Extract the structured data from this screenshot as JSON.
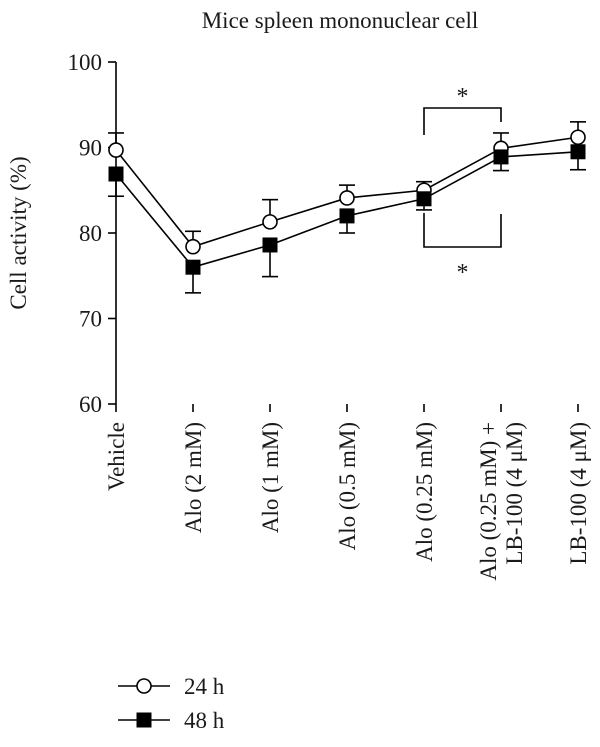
{
  "chart_data": {
    "type": "line",
    "title": "Mice spleen mononuclear cell",
    "xlabel": "",
    "ylabel": "Cell activity (%)",
    "ylim": [
      60,
      100
    ],
    "yticks": [
      "60",
      "70",
      "80",
      "90",
      "100"
    ],
    "categories": [
      [
        "Vehicle"
      ],
      [
        "Alo (2 mM)"
      ],
      [
        "Alo (1 mM)"
      ],
      [
        "Alo (0.5 mM)"
      ],
      [
        "Alo (0.25 mM)"
      ],
      [
        "Alo (0.25 mM) +",
        "LB-100 (4 μM)"
      ],
      [
        "LB-100 (4 μM)"
      ]
    ],
    "series": [
      {
        "name": "24 h",
        "marker": "open-circle",
        "values": [
          89.7,
          78.4,
          81.3,
          84.1,
          85.0,
          89.9,
          91.2
        ],
        "errors": [
          2.0,
          1.8,
          2.6,
          1.5,
          1.0,
          1.8,
          1.8
        ]
      },
      {
        "name": "48 h",
        "marker": "filled-square",
        "values": [
          86.9,
          76.0,
          78.6,
          82.0,
          84.0,
          88.9,
          89.5
        ],
        "errors": [
          2.6,
          3.0,
          3.7,
          2.0,
          1.3,
          1.6,
          2.1
        ]
      }
    ],
    "annotations": [
      {
        "text": "*",
        "between": [
          4,
          5
        ],
        "series": "24 h",
        "position": "above"
      },
      {
        "text": "*",
        "between": [
          4,
          5
        ],
        "series": "48 h",
        "position": "below"
      }
    ],
    "grid": false,
    "legend": "bottom-left",
    "color": "#000000"
  }
}
